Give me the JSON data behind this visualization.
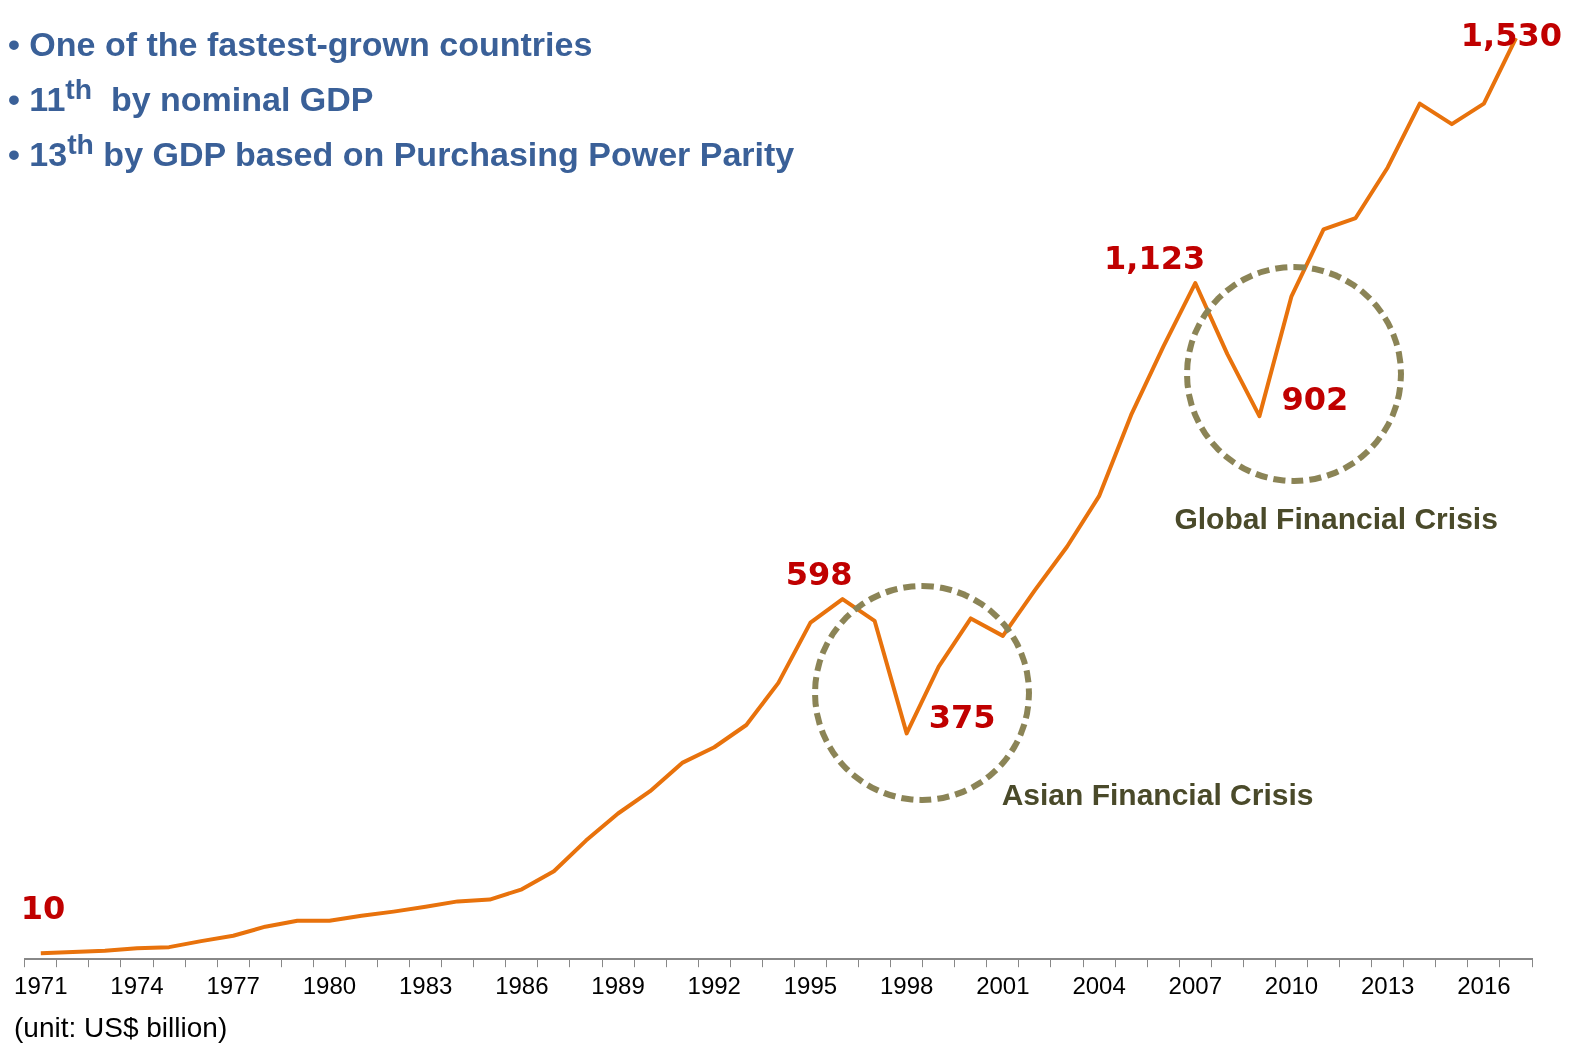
{
  "chart_data": {
    "type": "line",
    "categories": [
      "1971",
      null,
      null,
      "1974",
      null,
      null,
      "1977",
      null,
      null,
      "1980",
      null,
      null,
      "1983",
      null,
      null,
      "1986",
      null,
      null,
      "1989",
      null,
      null,
      "1992",
      null,
      null,
      "1995",
      null,
      null,
      "1998",
      null,
      null,
      "2001",
      null,
      null,
      "2004",
      null,
      null,
      "2007",
      null,
      null,
      "2010",
      null,
      null,
      "2013",
      null,
      null,
      "2016",
      null
    ],
    "series": [
      {
        "color": "#e8720c",
        "values": [
          10,
          12,
          14,
          18,
          20,
          30,
          39,
          54,
          64,
          64,
          72,
          79,
          87,
          96,
          99,
          116,
          146,
          197,
          242,
          279,
          326,
          352,
          389,
          459,
          559,
          598,
          562,
          375,
          486,
          566,
          537,
          613,
          685,
          769,
          904,
          1017,
          1123,
          1005,
          902,
          1101,
          1212,
          1231,
          1315,
          1421,
          1387,
          1421,
          1530
        ],
        "value_labels": [
          "10",
          null,
          null,
          null,
          null,
          null,
          null,
          null,
          null,
          null,
          null,
          null,
          null,
          null,
          null,
          null,
          null,
          null,
          null,
          null,
          null,
          null,
          null,
          null,
          null,
          "598",
          null,
          "375",
          null,
          null,
          null,
          null,
          null,
          null,
          null,
          null,
          "1,123",
          null,
          "902",
          null,
          null,
          null,
          null,
          null,
          null,
          null,
          "1,530"
        ]
      }
    ],
    "annotations": [
      "• One of the fastest-grown countries",
      "• 11$^{th}$  by nominal GDP",
      "• 13$^{th}$ by GDP based on Purchasing Power Parity",
      "(unit: US$ billion)",
      "Asian Financial Crisis",
      "Global Financial Crisis"
    ],
    "legend": false
  }
}
